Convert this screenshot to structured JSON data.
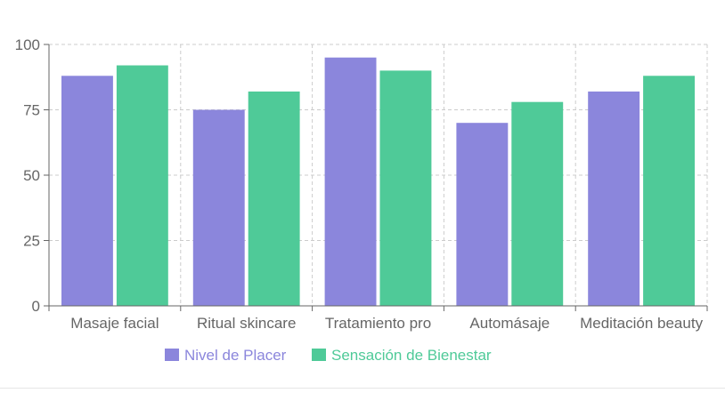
{
  "chart_data": {
    "type": "bar",
    "categories": [
      "Masaje facial",
      "Ritual skincare",
      "Tratamiento pro",
      "Automásaje",
      "Meditación beauty"
    ],
    "series": [
      {
        "name": "Nivel de Placer",
        "values": [
          88,
          75,
          95,
          70,
          82
        ],
        "color": "#8b86dc"
      },
      {
        "name": "Sensación de Bienestar",
        "values": [
          92,
          82,
          90,
          78,
          88
        ],
        "color": "#4fca98"
      }
    ],
    "y_ticks": [
      "0",
      "25",
      "50",
      "75",
      "100"
    ],
    "ylim": [
      0,
      100
    ],
    "grid": true,
    "grid_style": "dashed",
    "legend_position": "bottom-center",
    "axis_color": "#666666",
    "grid_color": "#cccccc"
  }
}
